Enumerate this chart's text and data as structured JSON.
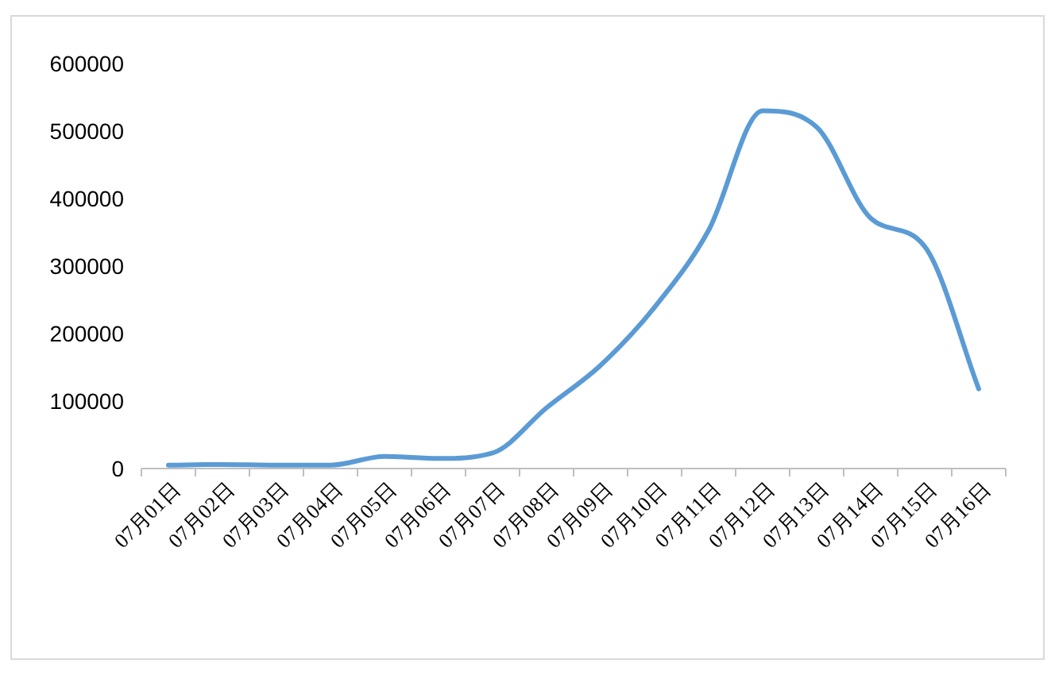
{
  "chart_data": {
    "type": "line",
    "categories": [
      "07月01日",
      "07月02日",
      "07月03日",
      "07月04日",
      "07月05日",
      "07月06日",
      "07月07日",
      "07月08日",
      "07月09日",
      "07月10日",
      "07月11日",
      "07月12日",
      "07月13日",
      "07月14日",
      "07月15日",
      "07月16日"
    ],
    "series": [
      {
        "color": "#5b9bd5",
        "values": [
          5000,
          6000,
          5000,
          5000,
          18000,
          15000,
          23000,
          90000,
          153000,
          239000,
          353000,
          530000,
          506000,
          371000,
          329000,
          118000
        ]
      }
    ],
    "ylim": [
      0,
      600000
    ],
    "yticks": [
      0,
      100000,
      200000,
      300000,
      400000,
      500000,
      600000
    ],
    "grid": false,
    "marker": "none",
    "line_style": "solid"
  }
}
